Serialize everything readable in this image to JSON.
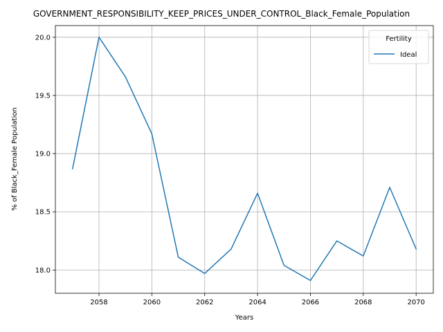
{
  "chart_data": {
    "type": "line",
    "title": "GOVERNMENT_RESPONSIBILITY_KEEP_PRICES_UNDER_CONTROL_Black_Female_Population",
    "xlabel": "Years",
    "ylabel": "% of Black_Female Population",
    "xlim": [
      2056.35,
      2070.65
    ],
    "ylim": [
      17.8,
      20.1
    ],
    "xticks": [
      2058,
      2060,
      2062,
      2064,
      2066,
      2068,
      2070
    ],
    "yticks": [
      18.0,
      18.5,
      19.0,
      19.5,
      20.0
    ],
    "grid": true,
    "legend": {
      "title": "Fertility",
      "placement": "top-right"
    },
    "series": [
      {
        "name": "Ideal",
        "color": "#1f77b4",
        "x": [
          2057,
          2058,
          2059,
          2060,
          2061,
          2062,
          2063,
          2064,
          2065,
          2066,
          2067,
          2068,
          2069,
          2070
        ],
        "values": [
          18.87,
          20.0,
          19.66,
          19.17,
          18.11,
          17.97,
          18.18,
          18.66,
          18.04,
          17.91,
          18.25,
          18.12,
          18.71,
          18.18
        ]
      }
    ]
  }
}
